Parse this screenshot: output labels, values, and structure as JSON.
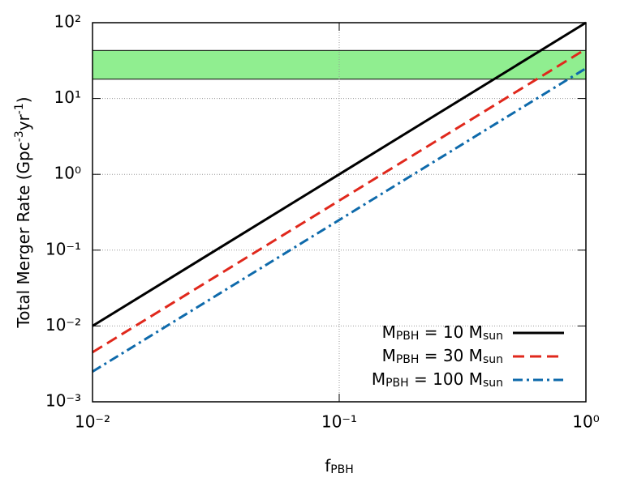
{
  "chart_data": {
    "type": "line",
    "x_label": [
      "f",
      "PBH"
    ],
    "y_label": [
      "Total Merger Rate (Gpc",
      "-3",
      "yr",
      "-1",
      ")"
    ],
    "x": [
      0.01,
      0.1,
      1
    ],
    "series": [
      {
        "name": [
          "M",
          "PBH",
          " = 10 M",
          "sun"
        ],
        "color": "#000000",
        "dash": "solid",
        "values": [
          0.01,
          1,
          100
        ]
      },
      {
        "name": [
          "M",
          "PBH",
          " = 30 M",
          "sun"
        ],
        "color": "#e0281c",
        "dash": "dashed",
        "values": [
          0.0045,
          0.45,
          45
        ]
      },
      {
        "name": [
          "M",
          "PBH",
          " = 100 M",
          "sun"
        ],
        "color": "#0e6aab",
        "dash": "dashdot",
        "values": [
          0.0025,
          0.25,
          25
        ]
      }
    ],
    "band": {
      "ymin": 18,
      "ymax": 43,
      "color": "#90ee90"
    },
    "xscale": "log",
    "yscale": "log",
    "xlim": [
      0.01,
      1
    ],
    "ylim": [
      0.001,
      100
    ],
    "xticks": [
      {
        "value": 0.01,
        "label": "10⁻²"
      },
      {
        "value": 0.1,
        "label": "10⁻¹"
      },
      {
        "value": 1,
        "label": "10⁰"
      }
    ],
    "yticks": [
      {
        "value": 0.001,
        "label": "10⁻³"
      },
      {
        "value": 0.01,
        "label": "10⁻²"
      },
      {
        "value": 0.1,
        "label": "10⁻¹"
      },
      {
        "value": 1,
        "label": "10⁰"
      },
      {
        "value": 10,
        "label": "10¹"
      },
      {
        "value": 100,
        "label": "10²"
      }
    ],
    "grid": true,
    "legend": "lower right"
  }
}
